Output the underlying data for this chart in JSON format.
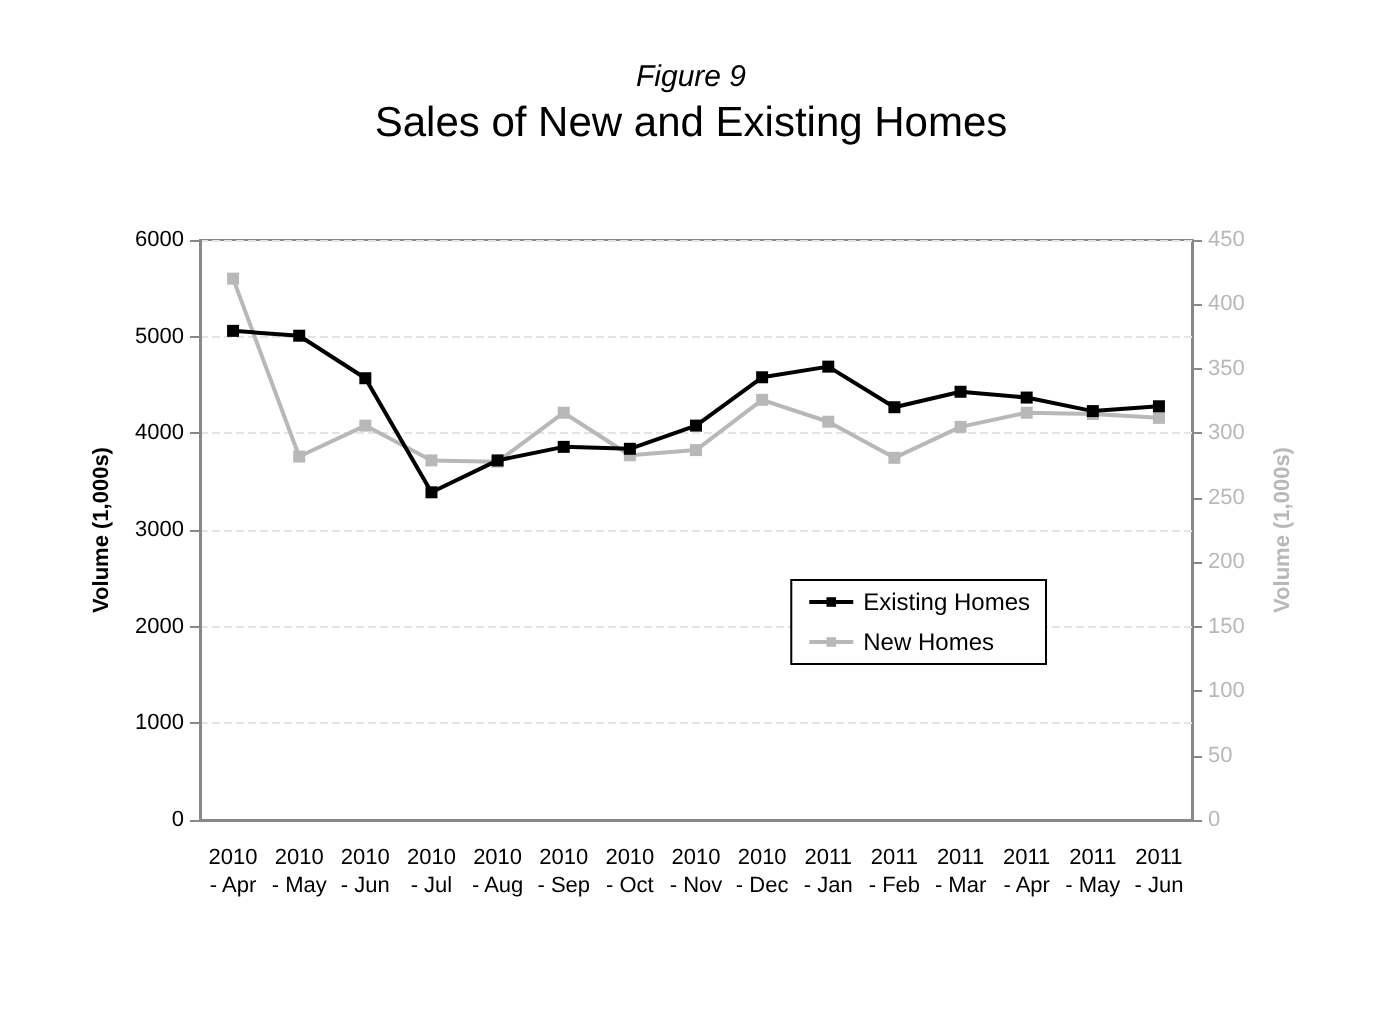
{
  "chart_data": {
    "type": "line",
    "title": "Sales of New and Existing Homes",
    "subtitle": "Figure 9",
    "ylabel": "Volume (1,000s)",
    "y2label": "Volume (1,000s)",
    "categories": [
      "2010\n- Apr",
      "2010\n- May",
      "2010\n- Jun",
      "2010\n- Jul",
      "2010\n- Aug",
      "2010\n- Sep",
      "2010\n- Oct",
      "2010\n- Nov",
      "2010\n- Dec",
      "2011\n- Jan",
      "2011\n- Feb",
      "2011\n- Mar",
      "2011\n- Apr",
      "2011\n- May",
      "2011\n- Jun"
    ],
    "series": [
      {
        "name": "Existing Homes",
        "color": "#000000",
        "values": [
          5060,
          5010,
          4570,
          3390,
          3720,
          3860,
          3840,
          4080,
          4580,
          4690,
          4270,
          4430,
          4370,
          4230,
          4280
        ]
      },
      {
        "name": "New Homes",
        "color": "#b8b8b8",
        "axis": "y2",
        "values": [
          420,
          282,
          306,
          279,
          278,
          316,
          283,
          287,
          326,
          309,
          281,
          305,
          316,
          315,
          312
        ]
      }
    ],
    "ylim": [
      0,
      6000
    ],
    "yticks": [
      0,
      1000,
      2000,
      3000,
      4000,
      5000,
      6000
    ],
    "y2lim": [
      0,
      450
    ],
    "y2ticks": [
      0,
      50,
      100,
      150,
      200,
      250,
      300,
      350,
      400,
      450
    ],
    "grid": "y",
    "legend": "right",
    "marker": "square",
    "line_style": "solid"
  }
}
